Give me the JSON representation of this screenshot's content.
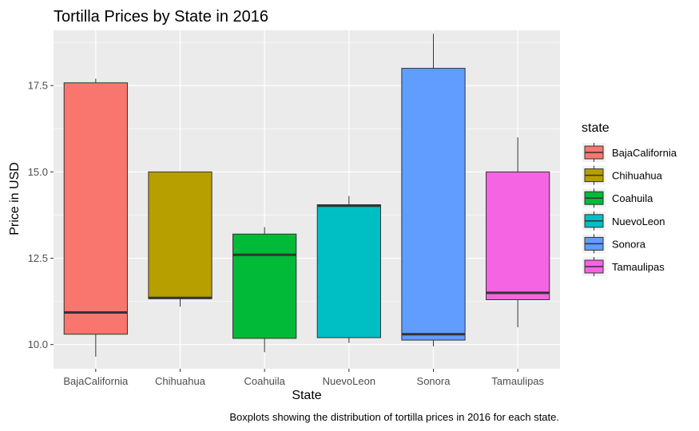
{
  "chart_data": {
    "type": "boxplot",
    "title": "Tortilla Prices by State in 2016",
    "xlabel": "State",
    "ylabel": "Price in USD",
    "caption": "Boxplots showing the distribution of tortilla prices in 2016 for each state.",
    "ylim": [
      9.3,
      19.1
    ],
    "yticks": [
      {
        "value": 10.0,
        "label": "10.0"
      },
      {
        "value": 12.5,
        "label": "12.5"
      },
      {
        "value": 15.0,
        "label": "15.0"
      },
      {
        "value": 17.5,
        "label": "17.5"
      }
    ],
    "grid": true,
    "legend": {
      "title": "state",
      "position": "right"
    },
    "categories": [
      "BajaCalifornia",
      "Chihuahua",
      "Coahuila",
      "NuevoLeon",
      "Sonora",
      "Tamaulipas"
    ],
    "boxes": [
      {
        "name": "BajaCalifornia",
        "color": "#F8766D",
        "whisker_low": 9.65,
        "q1": 10.3,
        "median": 10.93,
        "q3": 17.58,
        "whisker_high": 17.7
      },
      {
        "name": "Chihuahua",
        "color": "#B79F00",
        "whisker_low": 11.1,
        "q1": 11.33,
        "median": 11.35,
        "q3": 15.0,
        "whisker_high": 15.0
      },
      {
        "name": "Coahuila",
        "color": "#00BA38",
        "whisker_low": 9.78,
        "q1": 10.18,
        "median": 12.6,
        "q3": 13.2,
        "whisker_high": 13.4
      },
      {
        "name": "NuevoLeon",
        "color": "#00BFC4",
        "whisker_low": 10.05,
        "q1": 10.2,
        "median": 14.02,
        "q3": 14.05,
        "whisker_high": 14.3
      },
      {
        "name": "Sonora",
        "color": "#619CFF",
        "whisker_low": 9.95,
        "q1": 10.13,
        "median": 10.3,
        "q3": 18.0,
        "whisker_high": 19.0
      },
      {
        "name": "Tamaulipas",
        "color": "#F564E3",
        "whisker_low": 10.5,
        "q1": 11.3,
        "median": 11.5,
        "q3": 15.0,
        "whisker_high": 16.0
      }
    ]
  },
  "colors": {
    "panel_background": "#EBEBEB",
    "grid_major": "#FFFFFF",
    "median_line": "#333333",
    "box_outline": "#333333"
  }
}
